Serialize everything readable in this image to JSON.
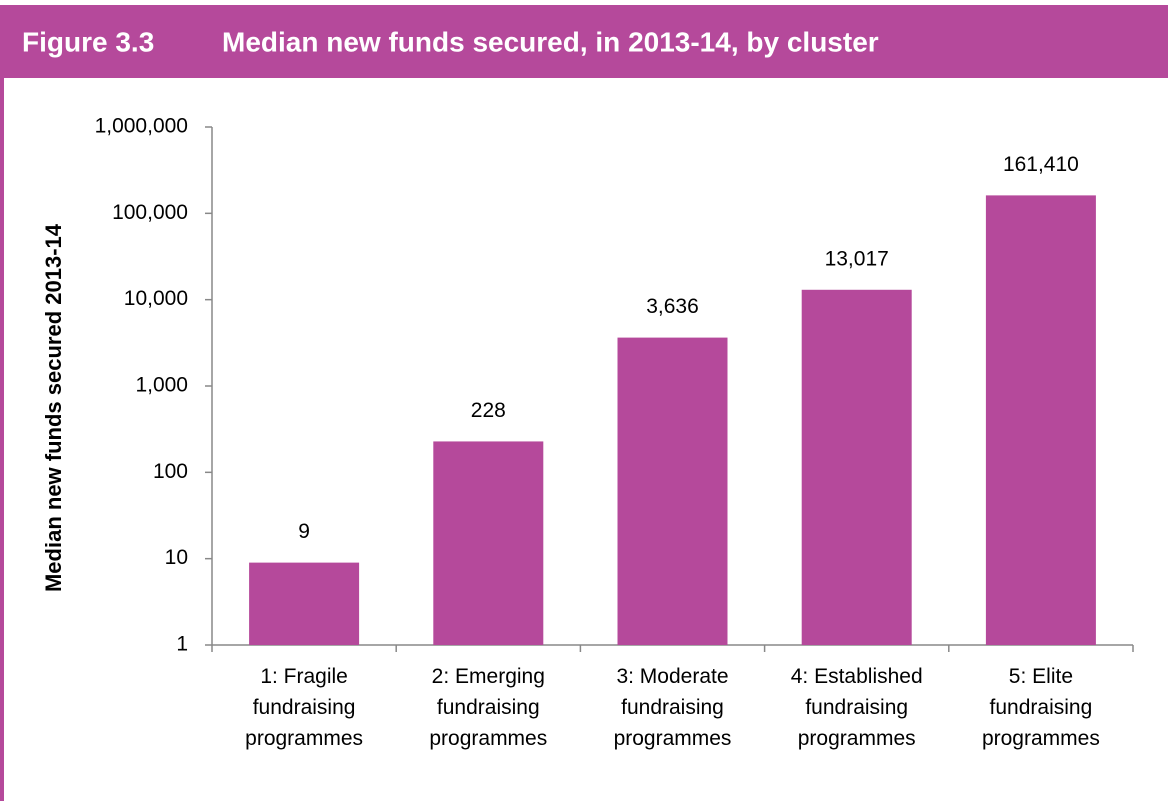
{
  "chart_data": {
    "type": "bar",
    "figure_label": "Figure 3.3",
    "title": "Median new funds secured, in 2013-14, by cluster",
    "y_label": "Median new funds secured 2013-14",
    "categories": [
      "1: Fragile fundraising programmes",
      "2: Emerging fundraising programmes",
      "3: Moderate fundraising programmes",
      "4: Established fundraising programmes",
      "5: Elite fundraising programmes"
    ],
    "values": [
      9,
      228,
      3636,
      13017,
      161410
    ],
    "value_labels": [
      "9",
      "228",
      "3,636",
      "13,017",
      "161,410"
    ],
    "color": "#b5499b",
    "log_scale": true,
    "ylim": [
      1,
      1000000
    ],
    "yticks": [
      1,
      10,
      100,
      {
        "value": 1000,
        "label": "1,000"
      },
      {
        "value": 10000,
        "label": "10,000"
      },
      {
        "value": 100000,
        "label": "100,000"
      },
      {
        "value": 1000000,
        "label": "1,000,000"
      }
    ],
    "grid": false
  }
}
